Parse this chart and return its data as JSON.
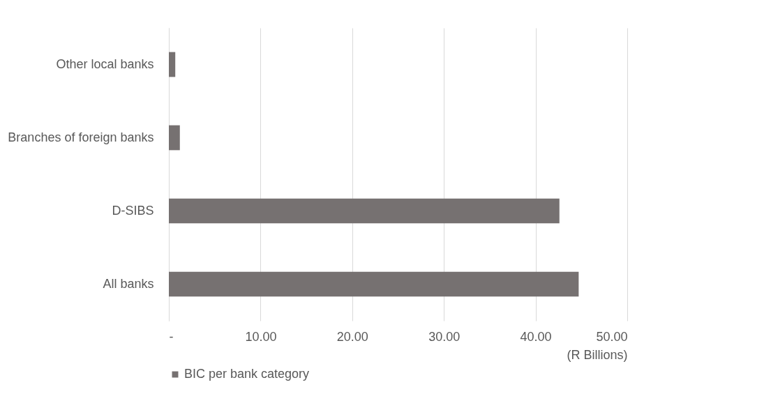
{
  "chart_data": {
    "type": "bar",
    "orientation": "horizontal",
    "categories": [
      "Other local banks",
      "Branches of foreign banks",
      "D-SIBS",
      "All banks"
    ],
    "series": [
      {
        "name": "BIC per bank category",
        "color": "#767171",
        "values": [
          0.7,
          1.2,
          42.6,
          44.7
        ]
      }
    ],
    "xlabel": "(R Billions)",
    "xlim": [
      0,
      50
    ],
    "xticks": [
      {
        "value": 0,
        "label": "-"
      },
      {
        "value": 10,
        "label": "10.00"
      },
      {
        "value": 20,
        "label": "20.00"
      },
      {
        "value": 30,
        "label": "30.00"
      },
      {
        "value": 40,
        "label": "40.00"
      },
      {
        "value": 50,
        "label": "50.00"
      }
    ],
    "grid": "x",
    "legend": "bottom"
  }
}
